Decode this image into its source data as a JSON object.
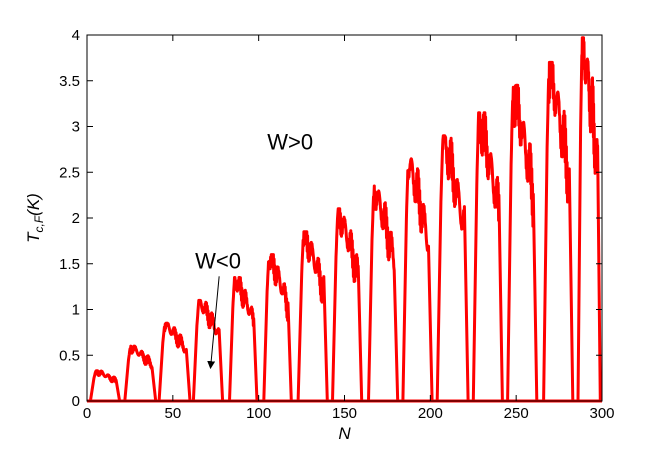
{
  "chart_data": {
    "type": "line",
    "xlabel": "N",
    "ylabel_main": "T",
    "ylabel_sub": "c,F",
    "ylabel_rest": "(K)",
    "xlim": [
      0,
      300
    ],
    "ylim": [
      0,
      4
    ],
    "xticks": [
      0,
      50,
      100,
      150,
      200,
      250,
      300
    ],
    "yticks": [
      0,
      0.5,
      1,
      1.5,
      2,
      2.5,
      3,
      3.5,
      4
    ],
    "grid": false,
    "series": [
      {
        "color": "#ff0000",
        "lobes": [
          {
            "start": 2,
            "end": 19,
            "peak": 0.33
          },
          {
            "start": 22,
            "end": 40,
            "peak": 0.6
          },
          {
            "start": 42,
            "end": 60,
            "peak": 0.85
          },
          {
            "start": 62,
            "end": 79,
            "peak": 1.1
          },
          {
            "start": 83,
            "end": 99,
            "peak": 1.35
          },
          {
            "start": 103,
            "end": 119,
            "peak": 1.6
          },
          {
            "start": 123,
            "end": 140,
            "peak": 1.85
          },
          {
            "start": 143,
            "end": 160,
            "peak": 2.1
          },
          {
            "start": 164,
            "end": 181,
            "peak": 2.35
          },
          {
            "start": 184,
            "end": 201,
            "peak": 2.65
          },
          {
            "start": 204,
            "end": 222,
            "peak": 2.9
          },
          {
            "start": 225,
            "end": 242,
            "peak": 3.15
          },
          {
            "start": 245,
            "end": 262,
            "peak": 3.45
          },
          {
            "start": 266,
            "end": 283,
            "peak": 3.7
          },
          {
            "start": 286,
            "end": 299,
            "peak": 3.97
          }
        ]
      }
    ],
    "annotations": [
      {
        "text": "W>0",
        "x": 105,
        "y": 2.75
      },
      {
        "text": "W<0",
        "x": 63,
        "y": 1.45,
        "arrow_to": [
          72,
          0.37
        ]
      }
    ]
  }
}
